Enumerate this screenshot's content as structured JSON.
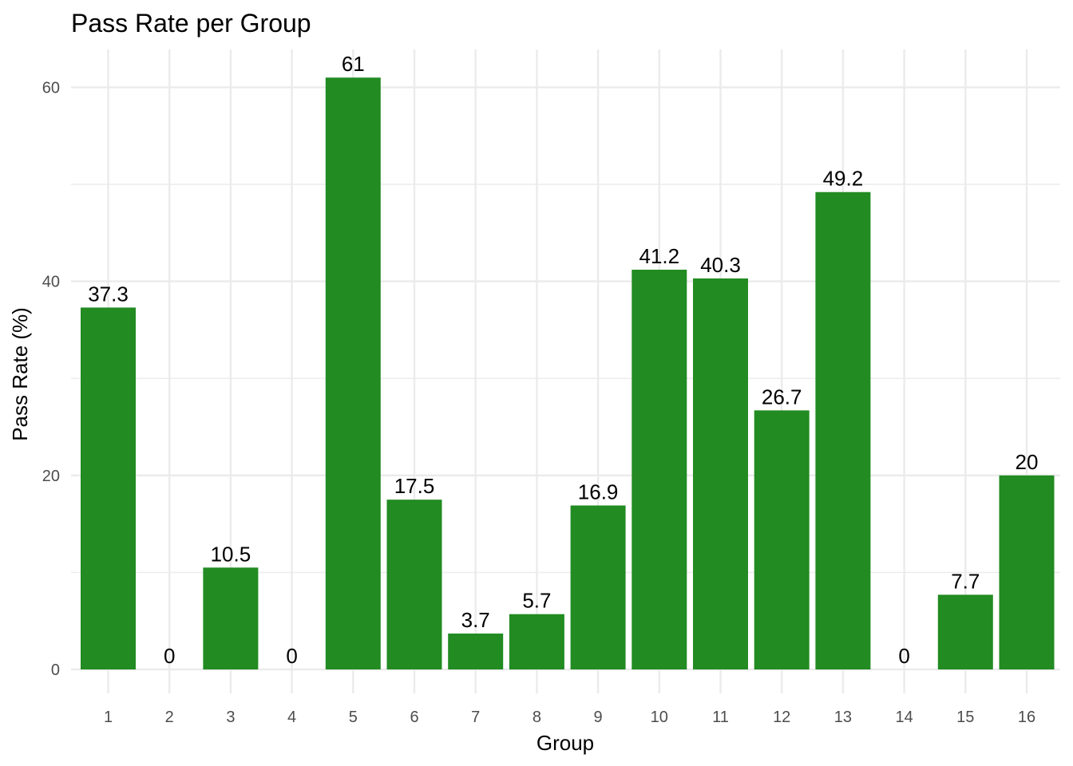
{
  "chart_data": {
    "type": "bar",
    "title": "Pass Rate per Group",
    "xlabel": "Group",
    "ylabel": "Pass Rate (%)",
    "categories": [
      "1",
      "2",
      "3",
      "4",
      "5",
      "6",
      "7",
      "8",
      "9",
      "10",
      "11",
      "12",
      "13",
      "14",
      "15",
      "16"
    ],
    "values": [
      37.3,
      0,
      10.5,
      0,
      61,
      17.5,
      3.7,
      5.7,
      16.9,
      41.2,
      40.3,
      26.7,
      49.2,
      0,
      7.7,
      20
    ],
    "data_labels": [
      "37.3",
      "0",
      "10.5",
      "0",
      "61",
      "17.5",
      "3.7",
      "5.7",
      "16.9",
      "41.2",
      "40.3",
      "26.7",
      "49.2",
      "0",
      "7.7",
      "20"
    ],
    "y_ticks": [
      0,
      20,
      40,
      60
    ],
    "y_tick_labels": [
      "0",
      "20",
      "40",
      "60"
    ],
    "ylim": [
      0,
      64
    ],
    "grid": true,
    "legend": "none",
    "colors": {
      "bar": "#228b22",
      "grid": "#ebebeb",
      "tick_text": "#4d4d4d",
      "text": "#000000"
    }
  }
}
